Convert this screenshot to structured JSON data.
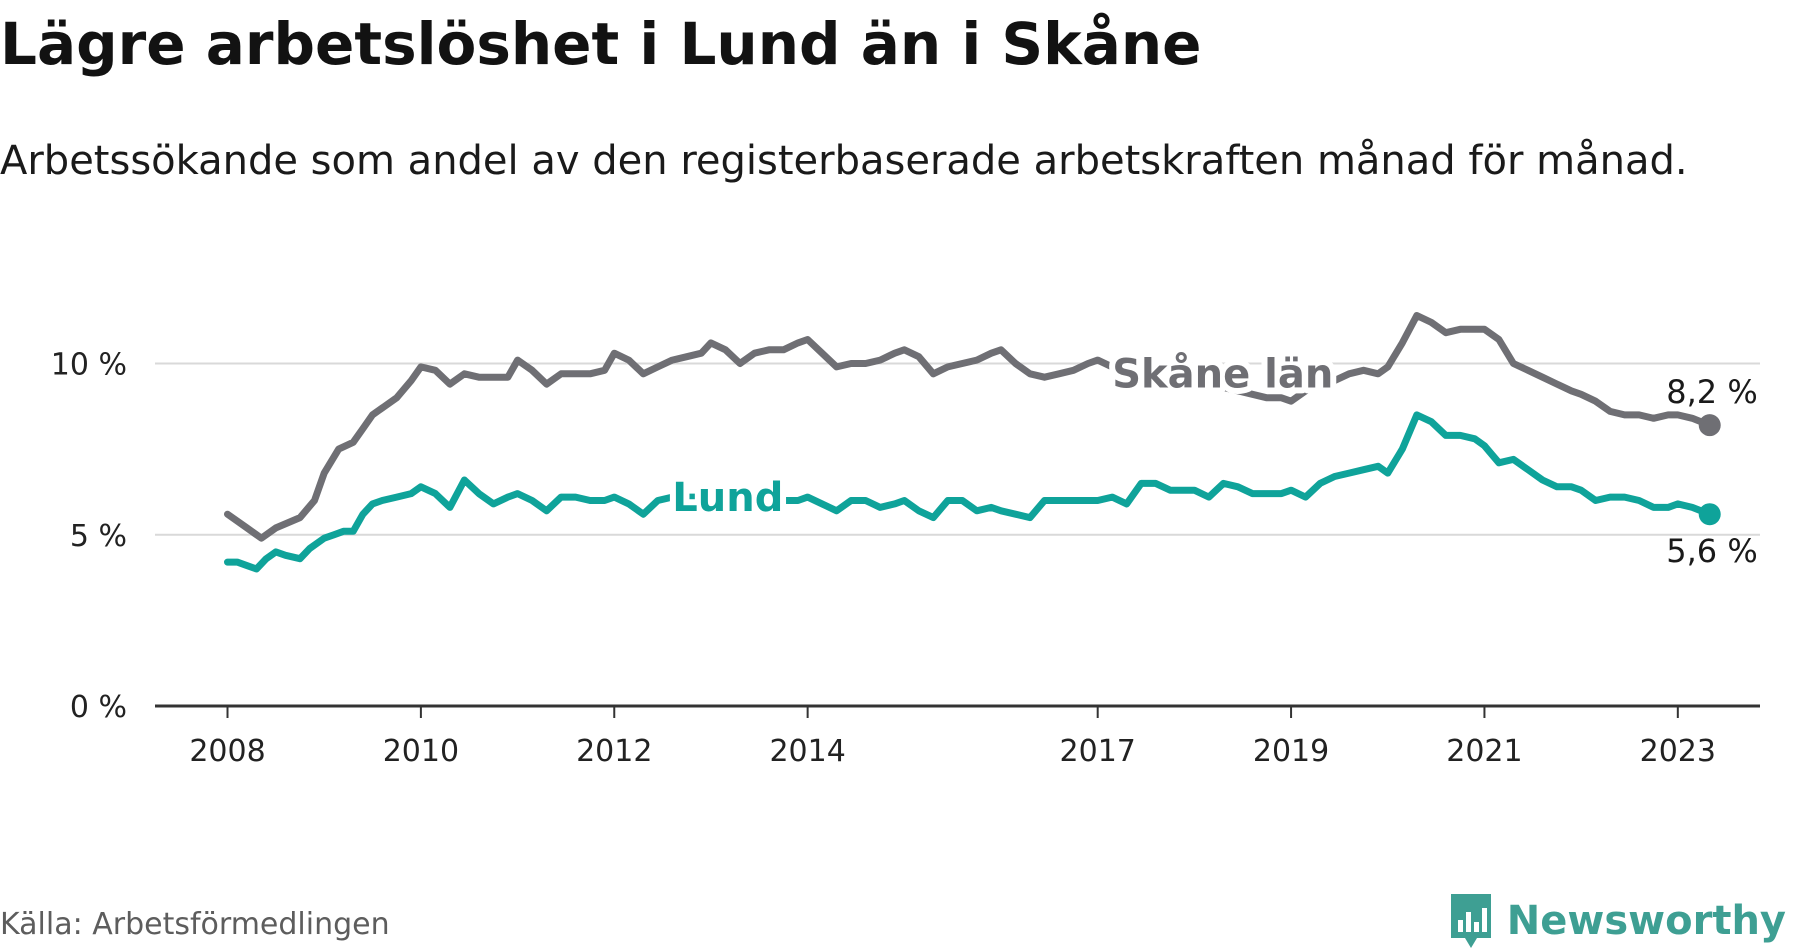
{
  "header": {
    "title": "Lägre arbetslöshet i Lund än i Skåne",
    "subtitle": "Arbetssökande som andel av den registerbaserade arbetskraften månad för månad."
  },
  "footer": {
    "source": "Källa: Arbetsförmedlingen",
    "brand": "Newsworthy"
  },
  "colors": {
    "lund": "#0fa39a",
    "skane": "#6f6f74",
    "grid": "#d9d9d9",
    "axis": "#333333",
    "brand": "#3e9f93"
  },
  "chart_data": {
    "type": "line",
    "title": "Lägre arbetslöshet i Lund än i Skåne",
    "xlabel": "",
    "ylabel": "",
    "ylim": [
      0,
      12
    ],
    "yticks": [
      0,
      5,
      10
    ],
    "ytick_labels": [
      "0 %",
      "5 %",
      "10 %"
    ],
    "xticks": [
      2008,
      2010,
      2012,
      2014,
      2017,
      2019,
      2021,
      2023
    ],
    "xtick_labels": [
      "2008",
      "2010",
      "2012",
      "2014",
      "2017",
      "2019",
      "2021",
      "2023"
    ],
    "xlim": [
      2007.25,
      2023.85
    ],
    "series": [
      {
        "name": "Skåne län",
        "label": "Skåne län",
        "color": "#6f6f74",
        "end_label": "8,2 %",
        "x": [
          2008.0,
          2008.2,
          2008.35,
          2008.5,
          2008.75,
          2008.9,
          2009.0,
          2009.15,
          2009.3,
          2009.4,
          2009.5,
          2009.6,
          2009.75,
          2009.9,
          2010.0,
          2010.15,
          2010.3,
          2010.45,
          2010.6,
          2010.75,
          2010.9,
          2011.0,
          2011.15,
          2011.3,
          2011.45,
          2011.6,
          2011.75,
          2011.9,
          2012.0,
          2012.15,
          2012.3,
          2012.45,
          2012.6,
          2012.75,
          2012.9,
          2013.0,
          2013.15,
          2013.3,
          2013.45,
          2013.6,
          2013.75,
          2013.9,
          2014.0,
          2014.15,
          2014.3,
          2014.45,
          2014.6,
          2014.75,
          2014.9,
          2015.0,
          2015.15,
          2015.3,
          2015.45,
          2015.6,
          2015.75,
          2015.9,
          2016.0,
          2016.15,
          2016.3,
          2016.45,
          2016.6,
          2016.75,
          2016.9,
          2017.0,
          2017.15,
          2017.3,
          2017.45,
          2017.6,
          2017.75,
          2017.9,
          2018.0,
          2018.15,
          2018.3,
          2018.45,
          2018.6,
          2018.75,
          2018.9,
          2019.0,
          2019.15,
          2019.3,
          2019.45,
          2019.6,
          2019.75,
          2019.9,
          2020.0,
          2020.15,
          2020.3,
          2020.45,
          2020.6,
          2020.75,
          2020.9,
          2021.0,
          2021.15,
          2021.3,
          2021.45,
          2021.6,
          2021.75,
          2021.9,
          2022.0,
          2022.15,
          2022.3,
          2022.45,
          2022.6,
          2022.75,
          2022.9,
          2023.0,
          2023.15,
          2023.33
        ],
        "values": [
          5.6,
          5.2,
          4.9,
          5.2,
          5.5,
          6.0,
          6.8,
          7.5,
          7.7,
          8.1,
          8.5,
          8.7,
          9.0,
          9.5,
          9.9,
          9.8,
          9.4,
          9.7,
          9.6,
          9.6,
          9.6,
          10.1,
          9.8,
          9.4,
          9.7,
          9.7,
          9.7,
          9.8,
          10.3,
          10.1,
          9.7,
          9.9,
          10.1,
          10.2,
          10.3,
          10.6,
          10.4,
          10.0,
          10.3,
          10.4,
          10.4,
          10.6,
          10.7,
          10.3,
          9.9,
          10.0,
          10.0,
          10.1,
          10.3,
          10.4,
          10.2,
          9.7,
          9.9,
          10.0,
          10.1,
          10.3,
          10.4,
          10.0,
          9.7,
          9.6,
          9.7,
          9.8,
          10.0,
          10.1,
          9.9,
          9.7,
          9.6,
          9.5,
          9.5,
          9.4,
          9.4,
          9.3,
          9.3,
          9.2,
          9.1,
          9.0,
          9.0,
          8.9,
          9.2,
          9.4,
          9.5,
          9.7,
          9.8,
          9.7,
          9.9,
          10.6,
          11.4,
          11.2,
          10.9,
          11.0,
          11.0,
          11.0,
          10.7,
          10.0,
          9.8,
          9.6,
          9.4,
          9.2,
          9.1,
          8.9,
          8.6,
          8.5,
          8.5,
          8.4,
          8.5,
          8.5,
          8.4,
          8.2
        ]
      },
      {
        "name": "Lund",
        "label": "Lund",
        "color": "#0fa39a",
        "end_label": "5,6 %",
        "x": [
          2008.0,
          2008.1,
          2008.2,
          2008.3,
          2008.4,
          2008.5,
          2008.6,
          2008.75,
          2008.85,
          2009.0,
          2009.1,
          2009.2,
          2009.3,
          2009.4,
          2009.5,
          2009.6,
          2009.75,
          2009.9,
          2010.0,
          2010.15,
          2010.3,
          2010.45,
          2010.6,
          2010.75,
          2010.9,
          2011.0,
          2011.15,
          2011.3,
          2011.45,
          2011.6,
          2011.75,
          2011.9,
          2012.0,
          2012.15,
          2012.3,
          2012.45,
          2012.6,
          2012.75,
          2012.9,
          2013.0,
          2013.15,
          2013.3,
          2013.45,
          2013.6,
          2013.75,
          2013.9,
          2014.0,
          2014.15,
          2014.3,
          2014.45,
          2014.6,
          2014.75,
          2014.9,
          2015.0,
          2015.15,
          2015.3,
          2015.45,
          2015.6,
          2015.75,
          2015.9,
          2016.0,
          2016.15,
          2016.3,
          2016.45,
          2016.6,
          2016.75,
          2016.9,
          2017.0,
          2017.15,
          2017.3,
          2017.45,
          2017.6,
          2017.75,
          2017.9,
          2018.0,
          2018.15,
          2018.3,
          2018.45,
          2018.6,
          2018.75,
          2018.9,
          2019.0,
          2019.15,
          2019.3,
          2019.45,
          2019.6,
          2019.75,
          2019.9,
          2020.0,
          2020.15,
          2020.3,
          2020.45,
          2020.6,
          2020.75,
          2020.9,
          2021.0,
          2021.15,
          2021.3,
          2021.45,
          2021.6,
          2021.75,
          2021.9,
          2022.0,
          2022.15,
          2022.3,
          2022.45,
          2022.6,
          2022.75,
          2022.9,
          2023.0,
          2023.15,
          2023.33
        ],
        "values": [
          4.2,
          4.2,
          4.1,
          4.0,
          4.3,
          4.5,
          4.4,
          4.3,
          4.6,
          4.9,
          5.0,
          5.1,
          5.1,
          5.6,
          5.9,
          6.0,
          6.1,
          6.2,
          6.4,
          6.2,
          5.8,
          6.6,
          6.2,
          5.9,
          6.1,
          6.2,
          6.0,
          5.7,
          6.1,
          6.1,
          6.0,
          6.0,
          6.1,
          5.9,
          5.6,
          6.0,
          6.1,
          6.1,
          6.1,
          6.0,
          6.0,
          6.1,
          6.1,
          6.1,
          6.0,
          6.0,
          6.1,
          5.9,
          5.7,
          6.0,
          6.0,
          5.8,
          5.9,
          6.0,
          5.7,
          5.5,
          6.0,
          6.0,
          5.7,
          5.8,
          5.7,
          5.6,
          5.5,
          6.0,
          6.0,
          6.0,
          6.0,
          6.0,
          6.1,
          5.9,
          6.5,
          6.5,
          6.3,
          6.3,
          6.3,
          6.1,
          6.5,
          6.4,
          6.2,
          6.2,
          6.2,
          6.3,
          6.1,
          6.5,
          6.7,
          6.8,
          6.9,
          7.0,
          6.8,
          7.5,
          8.5,
          8.3,
          7.9,
          7.9,
          7.8,
          7.6,
          7.1,
          7.2,
          6.9,
          6.6,
          6.4,
          6.4,
          6.3,
          6.0,
          6.1,
          6.1,
          6.0,
          5.8,
          5.8,
          5.9,
          5.8,
          5.6
        ]
      }
    ]
  }
}
